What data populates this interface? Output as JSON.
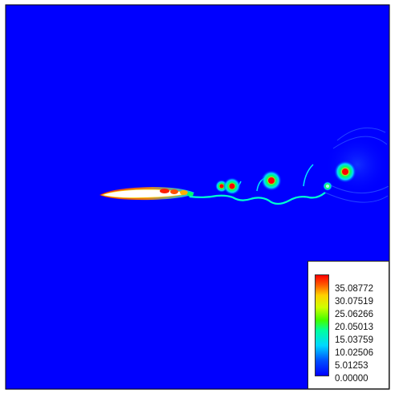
{
  "colors": {
    "background_field": "#0000ff",
    "airfoil": "#ffffff",
    "vortex_ring": "#00e5ff",
    "vortex_mid": "#7fff00",
    "vortex_high": "#ff2a00"
  },
  "legend": {
    "ticks": [
      "35.08772",
      "30.07519",
      "25.06266",
      "20.05013",
      "15.03759",
      "10.02506",
      "5.01253",
      "0.00000"
    ]
  }
}
